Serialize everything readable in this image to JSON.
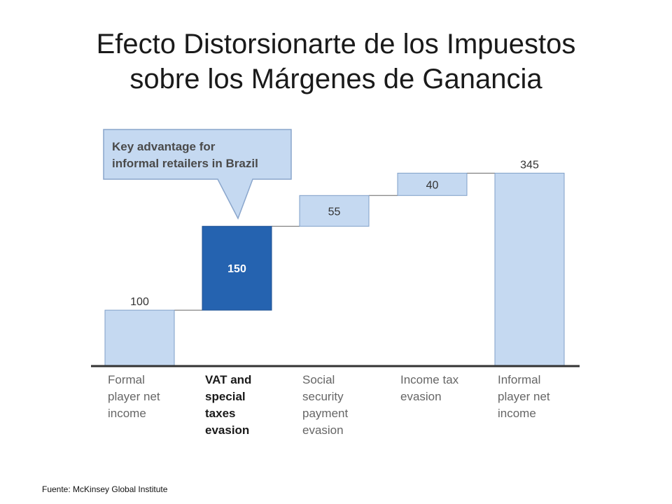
{
  "title": {
    "line1": "Efecto Distorsionarte de los Impuestos",
    "line2": "sobre los Márgenes de Ganancia"
  },
  "source": "Fuente: McKinsey Global Institute",
  "colors": {
    "light_bar": "#c5d9f1",
    "highlight_bar": "#2563b0",
    "bar_border": "#7f9fc8",
    "axis": "#333333"
  },
  "callout": {
    "text": [
      "Key advantage for",
      "informal retailers in Brazil"
    ]
  },
  "chart_data": {
    "type": "waterfall",
    "title": "",
    "xlabel": "",
    "ylabel": "",
    "grid": false,
    "ylim": [
      0,
      400
    ],
    "bars": [
      {
        "category": [
          "Formal",
          "player net",
          "income"
        ],
        "value": 100,
        "base": 0,
        "kind": "total",
        "label": "100",
        "bold": false,
        "highlight": false
      },
      {
        "category": [
          "VAT and",
          "special",
          "taxes",
          "evasion"
        ],
        "value": 150,
        "base": 100,
        "kind": "increment",
        "label": "150",
        "bold": true,
        "highlight": true
      },
      {
        "category": [
          "Social",
          "security",
          "payment",
          "evasion"
        ],
        "value": 55,
        "base": 250,
        "kind": "increment",
        "label": "55",
        "bold": false,
        "highlight": false
      },
      {
        "category": [
          "Income tax",
          "evasion"
        ],
        "value": 40,
        "base": 305,
        "kind": "increment",
        "label": "40",
        "bold": false,
        "highlight": false
      },
      {
        "category": [
          "Informal",
          "player net",
          "income"
        ],
        "value": 345,
        "base": 0,
        "kind": "total",
        "label": "345",
        "bold": false,
        "highlight": false
      }
    ]
  }
}
